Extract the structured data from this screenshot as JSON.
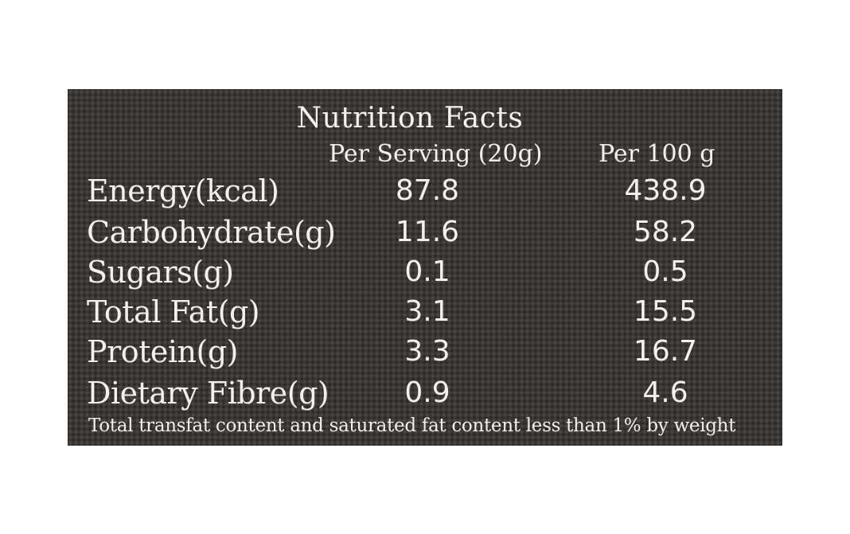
{
  "title": "Nutrition Facts",
  "columns": {
    "per_serving": "Per Serving (20g)",
    "per_100g": "Per 100 g"
  },
  "rows": [
    {
      "label": "Energy(kcal)",
      "per_serving": "87.8",
      "per_100g": "438.9"
    },
    {
      "label": "Carbohydrate(g)",
      "per_serving": "11.6",
      "per_100g": "58.2"
    },
    {
      "label": "Sugars(g)",
      "per_serving": "0.1",
      "per_100g": "0.5"
    },
    {
      "label": "Total Fat(g)",
      "per_serving": "3.1",
      "per_100g": "15.5"
    },
    {
      "label": "Protein(g)",
      "per_serving": "3.3",
      "per_100g": "16.7"
    },
    {
      "label": "Dietary Fibre(g)",
      "per_serving": "0.9",
      "per_100g": "4.6"
    }
  ],
  "footnote": "Total transfat content and saturated fat content less than 1% by weight",
  "colors": {
    "panel_background": "#3b3735",
    "text": "#f3f1ee",
    "page_background": "#ffffff"
  }
}
